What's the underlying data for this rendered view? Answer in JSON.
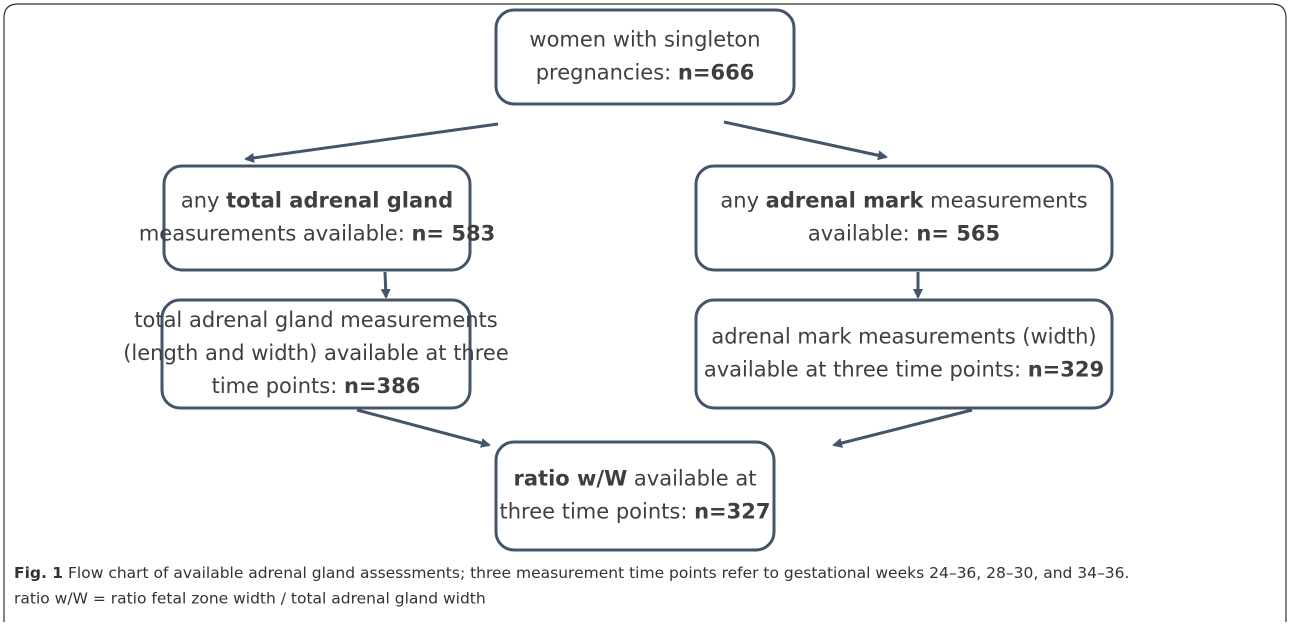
{
  "nodes": [
    {
      "lines": [
        [
          {
            "text": "women with singleton"
          }
        ],
        [
          {
            "text": "pregnancies: "
          },
          {
            "text": "n=666",
            "bold": true
          }
        ]
      ]
    },
    {
      "lines": [
        [
          {
            "text": "any "
          },
          {
            "text": "total adrenal gland",
            "bold": true
          }
        ],
        [
          {
            "text": "measurements available: "
          },
          {
            "text": "n= 583",
            "bold": true
          }
        ]
      ]
    },
    {
      "lines": [
        [
          {
            "text": "any "
          },
          {
            "text": "adrenal mark",
            "bold": true
          },
          {
            "text": " measurements"
          }
        ],
        [
          {
            "text": "available: "
          },
          {
            "text": "n= 565",
            "bold": true
          }
        ]
      ]
    },
    {
      "lines": [
        [
          {
            "text": "total adrenal gland measurements"
          }
        ],
        [
          {
            "text": "(length and width) available at three"
          }
        ],
        [
          {
            "text": "time points: "
          },
          {
            "text": "n=386",
            "bold": true
          }
        ]
      ]
    },
    {
      "lines": [
        [
          {
            "text": "adrenal mark measurements (width)"
          }
        ],
        [
          {
            "text": "available at three time points: "
          },
          {
            "text": "n=329",
            "bold": true
          }
        ]
      ]
    },
    {
      "lines": [
        [
          {
            "text": "ratio w/W",
            "bold": true
          },
          {
            "text": " available at"
          }
        ],
        [
          {
            "text": "three time points: "
          },
          {
            "text": "n=327",
            "bold": true
          }
        ]
      ]
    }
  ],
  "caption": {
    "label": "Fig. 1",
    "lines": [
      "Flow chart of available adrenal gland assessments; three measurement time points refer to gestational weeks 24–36, 28–30, and 34–36.",
      "ratio w/W = ratio fetal zone width / total adrenal gland width"
    ]
  }
}
